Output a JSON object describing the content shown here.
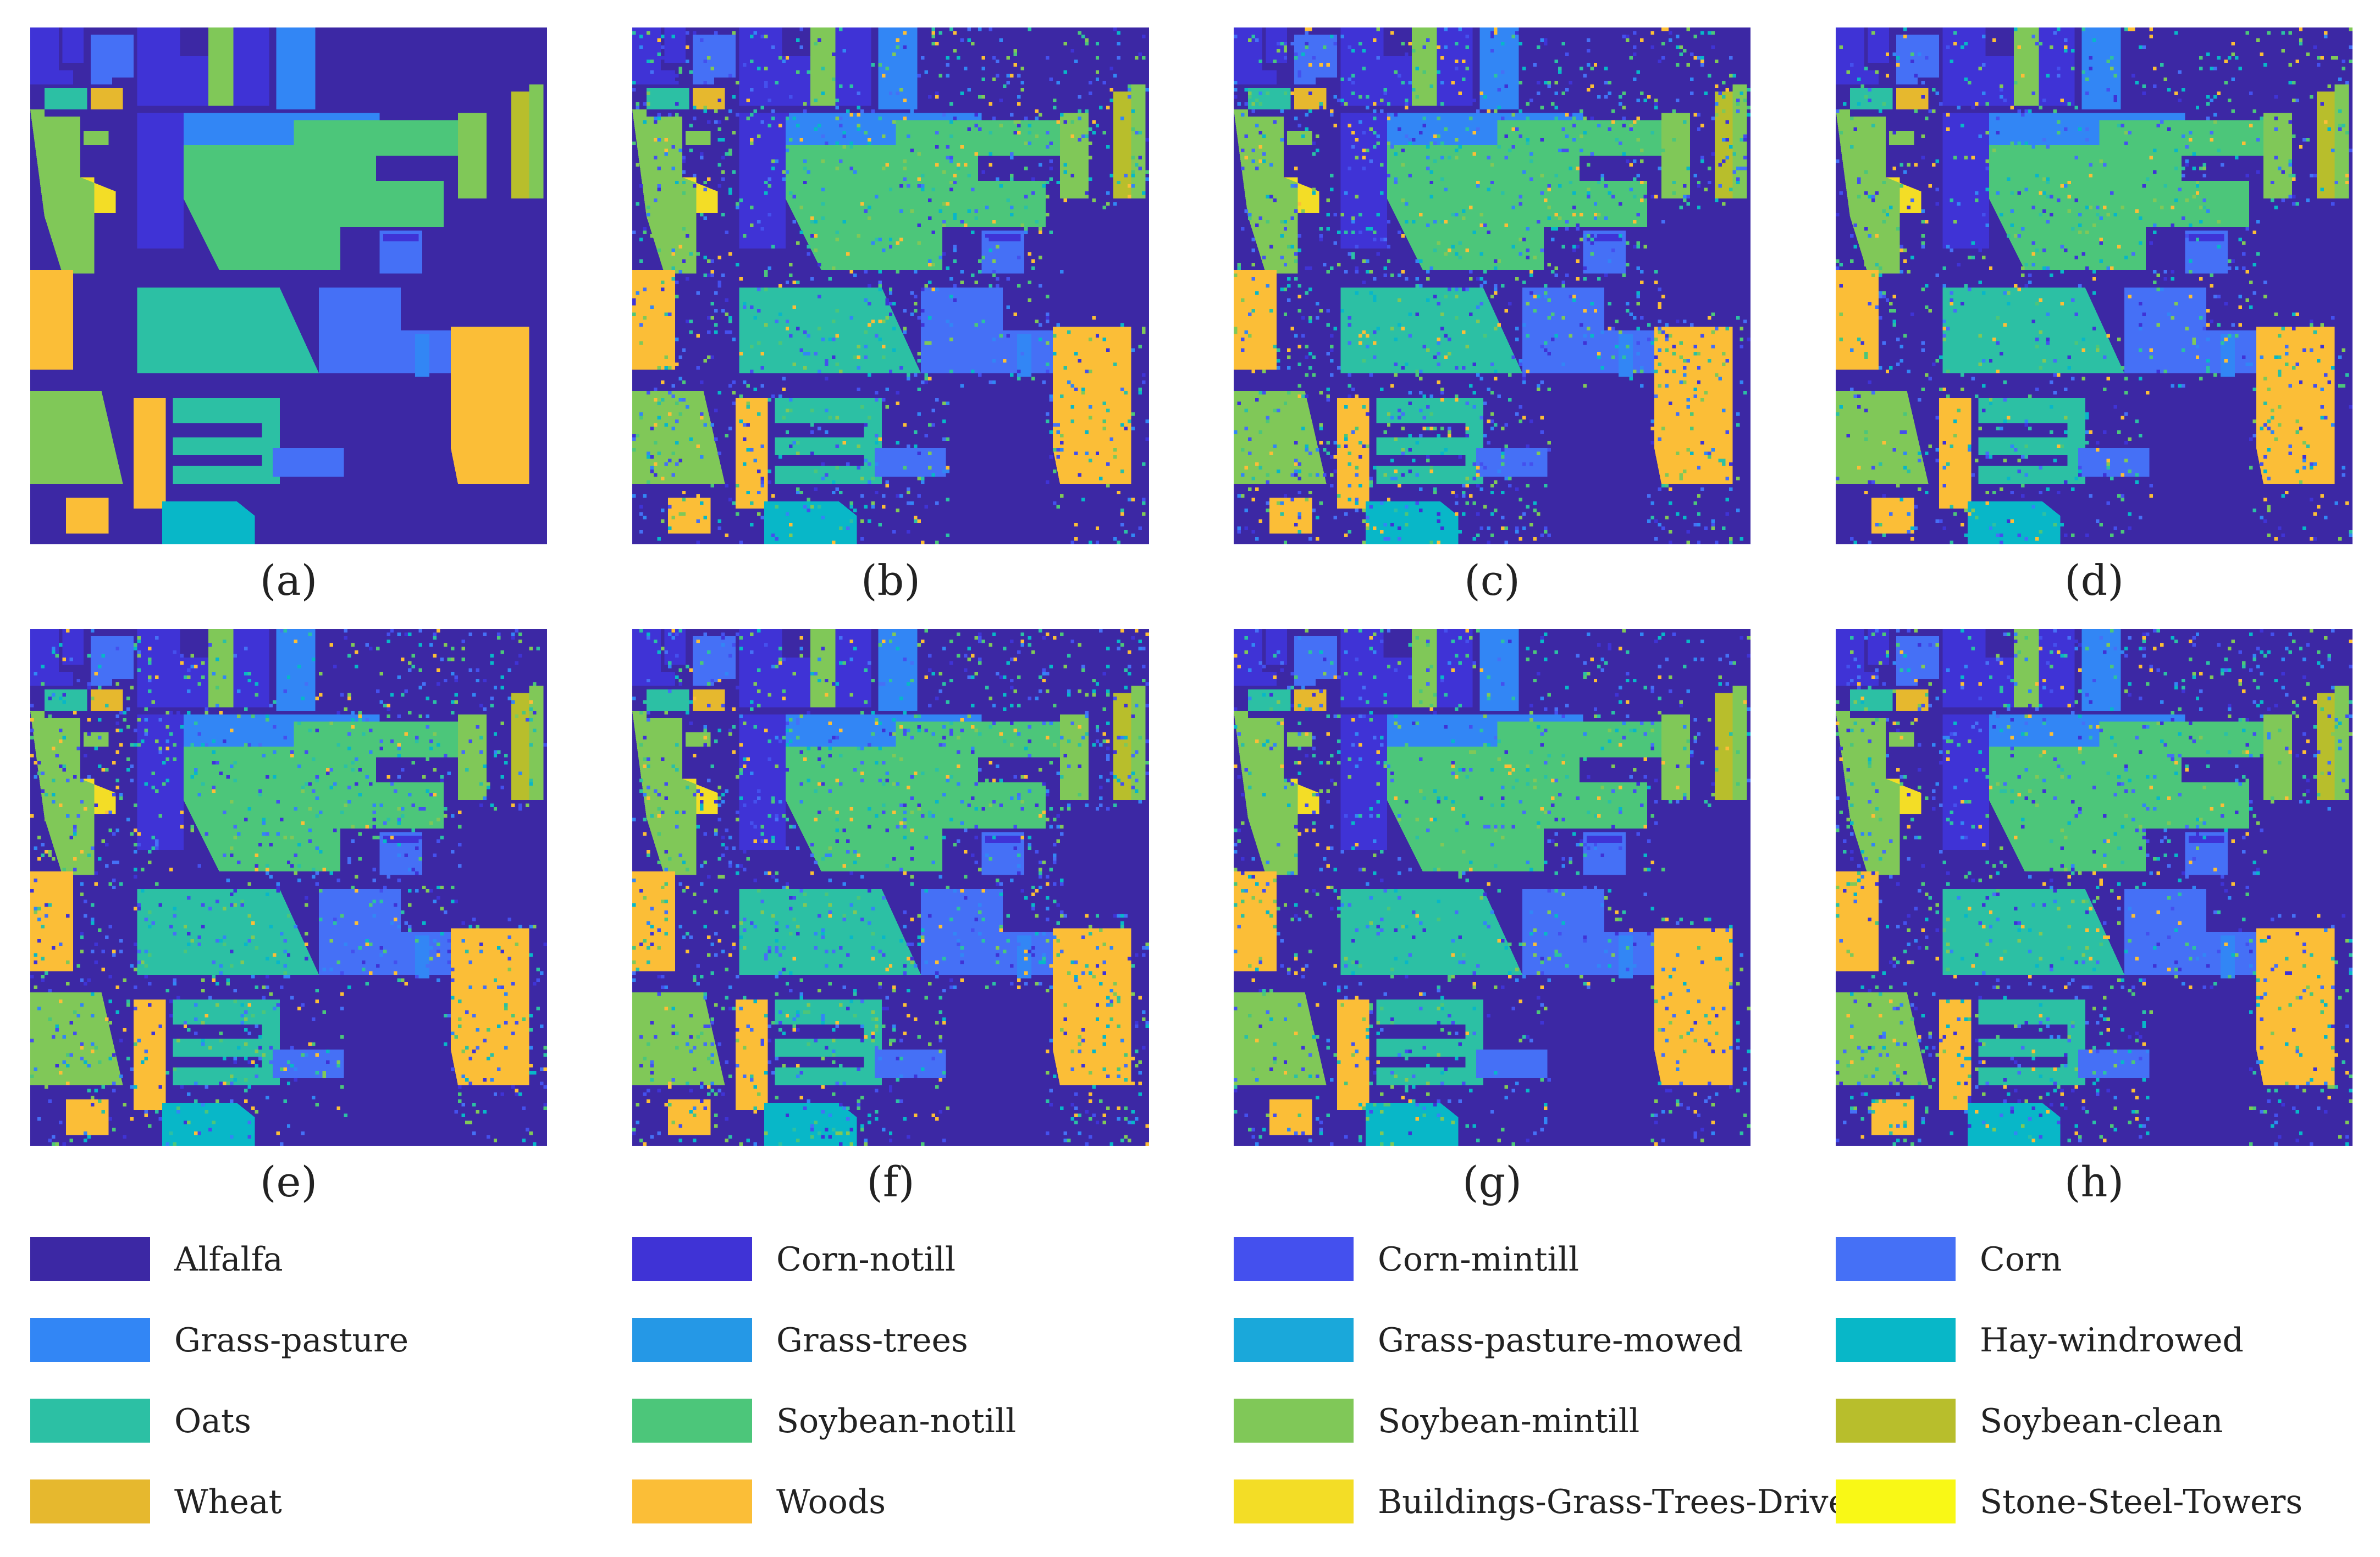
{
  "figure": {
    "panels": [
      {
        "label": "(a)",
        "type": "ground-truth"
      },
      {
        "label": "(b)",
        "type": "classification"
      },
      {
        "label": "(c)",
        "type": "classification"
      },
      {
        "label": "(d)",
        "type": "classification"
      },
      {
        "label": "(e)",
        "type": "classification"
      },
      {
        "label": "(f)",
        "type": "classification"
      },
      {
        "label": "(g)",
        "type": "classification"
      },
      {
        "label": "(h)",
        "type": "classification"
      }
    ],
    "background_color": "#3c28a4",
    "legend": [
      {
        "name": "Alfalfa",
        "color": "#3c28a4"
      },
      {
        "name": "Corn-notill",
        "color": "#3f33d6"
      },
      {
        "name": "Corn-mintill",
        "color": "#4450ee"
      },
      {
        "name": "Corn",
        "color": "#4570f6"
      },
      {
        "name": "Grass-pasture",
        "color": "#3286f5"
      },
      {
        "name": "Grass-trees",
        "color": "#2598e6"
      },
      {
        "name": "Grass-pasture-mowed",
        "color": "#1aa8da"
      },
      {
        "name": "Hay-windrowed",
        "color": "#08b7c8"
      },
      {
        "name": "Oats",
        "color": "#2cc0a4"
      },
      {
        "name": "Soybean-notill",
        "color": "#4cc67a"
      },
      {
        "name": "Soybean-mintill",
        "color": "#80c858"
      },
      {
        "name": "Soybean-clean",
        "color": "#b8be2c"
      },
      {
        "name": "Wheat",
        "color": "#e6b82e"
      },
      {
        "name": "Woods",
        "color": "#fbbe37"
      },
      {
        "name": "Buildings-Grass-Trees-Drives",
        "color": "#f3dd26"
      },
      {
        "name": "Stone-Steel-Towers",
        "color": "#f9f816"
      }
    ]
  }
}
